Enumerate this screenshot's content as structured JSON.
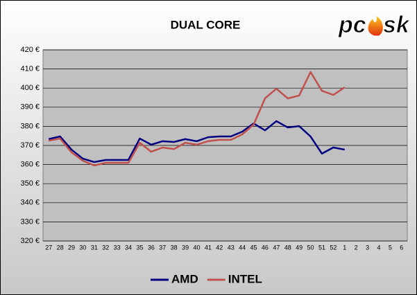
{
  "chart_data": {
    "type": "line",
    "title": "DUAL CORE",
    "logo": {
      "left": "pc",
      "right": "sk"
    },
    "categories": [
      "27",
      "28",
      "29",
      "30",
      "31",
      "32",
      "33",
      "34",
      "35",
      "36",
      "37",
      "38",
      "39",
      "40",
      "41",
      "42",
      "43",
      "44",
      "45",
      "46",
      "47",
      "48",
      "49",
      "50",
      "51",
      "52",
      "1",
      "2",
      "3",
      "4",
      "5",
      "6"
    ],
    "series": [
      {
        "name": "AMD",
        "color": "#000080",
        "values": [
          373.3,
          374.7,
          367.8,
          363.1,
          361.3,
          362.4,
          362.4,
          362.4,
          373.6,
          370.4,
          372.2,
          371.8,
          373.3,
          372.2,
          374.3,
          374.7,
          374.7,
          377.2,
          381.5,
          377.9,
          382.7,
          379.4,
          380.1,
          374.7,
          365.7,
          368.9,
          367.8,
          null,
          null,
          null,
          null,
          null
        ]
      },
      {
        "name": "INTEL",
        "color": "#c0504d",
        "values": [
          372.5,
          373.6,
          366.4,
          362.0,
          359.5,
          360.9,
          360.9,
          360.9,
          371.4,
          366.7,
          368.9,
          368.1,
          371.4,
          370.4,
          372.2,
          372.9,
          372.9,
          375.8,
          380.9,
          394.6,
          399.7,
          394.6,
          396.1,
          408.4,
          398.6,
          396.4,
          400.4,
          null,
          null,
          null,
          null,
          null
        ]
      }
    ],
    "ylim": [
      320,
      420
    ],
    "yticks": [
      {
        "value": 320,
        "label": "320 €"
      },
      {
        "value": 330,
        "label": "330 €"
      },
      {
        "value": 340,
        "label": "340 €"
      },
      {
        "value": 350,
        "label": "350 €"
      },
      {
        "value": 360,
        "label": "360 €"
      },
      {
        "value": 370,
        "label": "370 €"
      },
      {
        "value": 380,
        "label": "380 €"
      },
      {
        "value": 390,
        "label": "390 €"
      },
      {
        "value": 400,
        "label": "400 €"
      },
      {
        "value": 410,
        "label": "410 €"
      },
      {
        "value": 420,
        "label": "420 €"
      }
    ],
    "grid": true,
    "legend": "bottom"
  }
}
